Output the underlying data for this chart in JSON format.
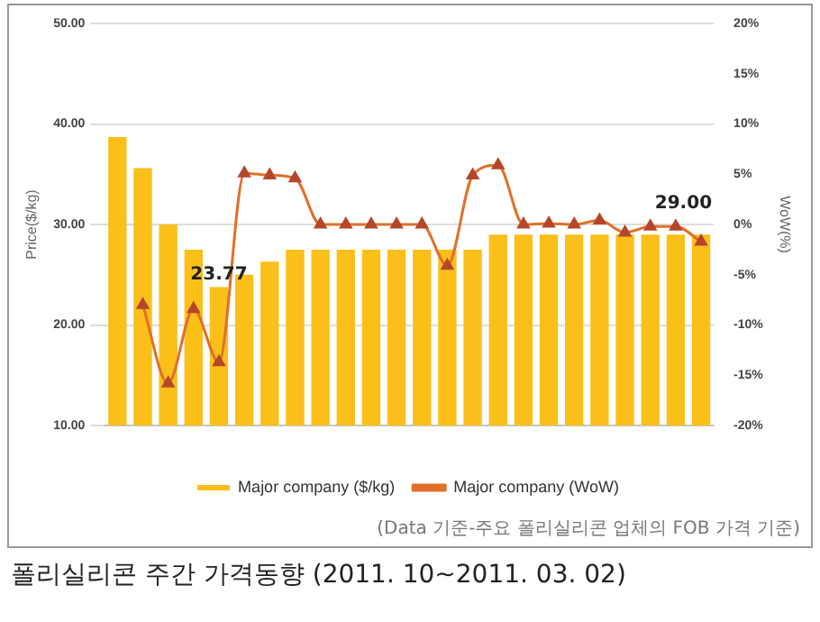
{
  "chart_data": {
    "type": "bar",
    "title": "폴리실리콘 주간 가격동향 (2011. 10~2011. 03. 02)",
    "ylabel": "Price($/kg)",
    "y2label": "WoW(%)",
    "annotations": [
      "(Data 기준-주요 폴리실리콘 업체의 FOB 가격 기준)"
    ],
    "categories": [
      null,
      null,
      null,
      null,
      null,
      null,
      null,
      null,
      null,
      null,
      null,
      null,
      null,
      null,
      null,
      null,
      null,
      null,
      null,
      null,
      null,
      null,
      null,
      null
    ],
    "series": [
      {
        "name": "Major company ($/kg)",
        "color": "#fbbf1a",
        "values": [
          38.7,
          35.6,
          30,
          27.5,
          23.77,
          25,
          26.3,
          27.5,
          27.5,
          27.5,
          27.5,
          27.5,
          27.5,
          27.5,
          27.5,
          29,
          29,
          29,
          29,
          29,
          29,
          29,
          29,
          29.0
        ],
        "value_labels": [
          null,
          null,
          null,
          null,
          "23.77",
          null,
          null,
          null,
          null,
          null,
          null,
          null,
          null,
          null,
          null,
          null,
          null,
          null,
          null,
          null,
          null,
          null,
          null,
          "29.00"
        ]
      },
      {
        "name": "Major company (WoW)",
        "type": "line",
        "axis": "y2",
        "color": "#e0702a",
        "marker": "triangle",
        "values": [
          null,
          -8,
          -15.8,
          -8.4,
          -13.7,
          5.1,
          4.9,
          4.6,
          0,
          0,
          0,
          0,
          0,
          -4.1,
          4.9,
          5.9,
          0,
          0.1,
          0,
          0.4,
          -0.8,
          -0.2,
          -0.2,
          -1.7
        ]
      }
    ],
    "ylim": [
      10,
      50
    ],
    "yticks": [
      {
        "value": 10,
        "label": "10.00"
      },
      {
        "value": 20,
        "label": "20.00"
      },
      {
        "value": 30,
        "label": "30.00"
      },
      {
        "value": 40,
        "label": "40.00"
      },
      {
        "value": 50,
        "label": "50.00"
      }
    ],
    "y2lim": [
      -20,
      20
    ],
    "y2ticks": [
      {
        "value": -20,
        "label": "-20%"
      },
      {
        "value": -15,
        "label": "-15%"
      },
      {
        "value": -10,
        "label": "-10%"
      },
      {
        "value": -5,
        "label": "-5%"
      },
      {
        "value": 0,
        "label": "0%"
      },
      {
        "value": 5,
        "label": "5%"
      },
      {
        "value": 10,
        "label": "10%"
      },
      {
        "value": 15,
        "label": "15%"
      },
      {
        "value": 20,
        "label": "20%"
      }
    ],
    "grid": "y",
    "legend": "bottom"
  }
}
